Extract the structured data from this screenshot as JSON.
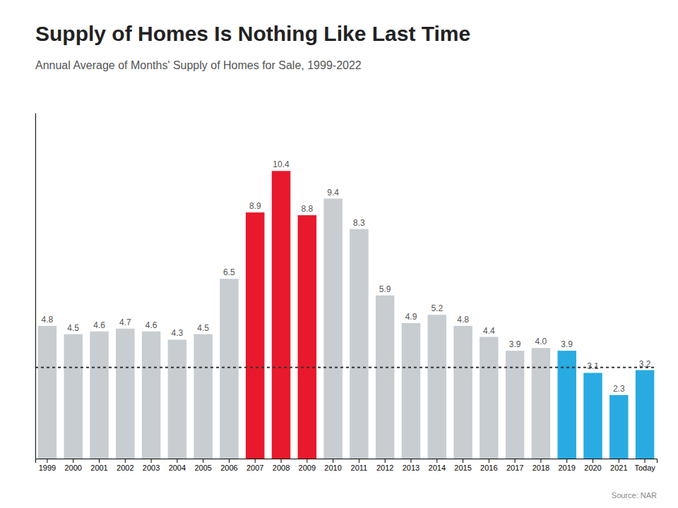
{
  "chart_data": {
    "type": "bar",
    "title": "Supply of Homes Is Nothing Like Last Time",
    "subtitle": "Annual Average of Months' Supply of Homes for Sale, 1999-2022",
    "source": "Source: NAR",
    "categories": [
      "1999",
      "2000",
      "2001",
      "2002",
      "2003",
      "2004",
      "2005",
      "2006",
      "2007",
      "2008",
      "2009",
      "2010",
      "2011",
      "2012",
      "2013",
      "2014",
      "2015",
      "2016",
      "2017",
      "2018",
      "2019",
      "2020",
      "2021",
      "Today"
    ],
    "values": [
      4.8,
      4.5,
      4.6,
      4.7,
      4.6,
      4.3,
      4.5,
      6.5,
      8.9,
      10.4,
      8.8,
      9.4,
      8.3,
      5.9,
      4.9,
      5.2,
      4.8,
      4.4,
      3.9,
      4.0,
      3.9,
      3.1,
      2.3,
      3.2
    ],
    "value_labels": [
      "4.8",
      "4.5",
      "4.6",
      "4.7",
      "4.6",
      "4.3",
      "4.5",
      "6.5",
      "8.9",
      "10.4",
      "8.8",
      "9.4",
      "8.3",
      "5.9",
      "4.9",
      "5.2",
      "4.8",
      "4.4",
      "3.9",
      "4.0",
      "3.9",
      "3.1",
      "2.3",
      "3.2"
    ],
    "colors": [
      "#C8CDD2",
      "#C8CDD2",
      "#C8CDD2",
      "#C8CDD2",
      "#C8CDD2",
      "#C8CDD2",
      "#C8CDD2",
      "#C8CDD2",
      "#E8192C",
      "#E8192C",
      "#E8192C",
      "#C8CDD2",
      "#C8CDD2",
      "#C8CDD2",
      "#C8CDD2",
      "#C8CDD2",
      "#C8CDD2",
      "#C8CDD2",
      "#C8CDD2",
      "#C8CDD2",
      "#29ABE2",
      "#29ABE2",
      "#29ABE2",
      "#29ABE2"
    ],
    "reference_line": 3.3,
    "ylim": [
      0,
      12.5
    ],
    "data_labels": true,
    "tick_labels": "x",
    "grid": false
  }
}
